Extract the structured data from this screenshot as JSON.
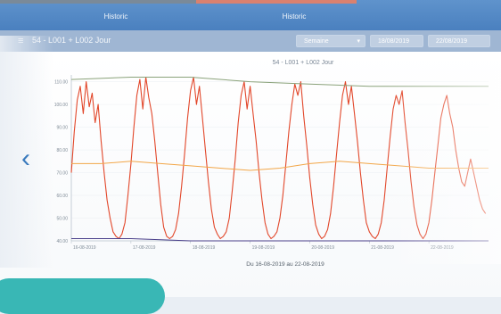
{
  "tabs": [
    {
      "label": "Historic"
    },
    {
      "label": "Historic"
    }
  ],
  "toolbar": {
    "menu_icon": "hamburger-icon",
    "title": "54 - L001 + L002 Jour",
    "period_select": "Semaine",
    "date_from": "18/08/2019",
    "date_to": "22/08/2019"
  },
  "chart_data": {
    "type": "line",
    "title": "54 - L001 + L002 Jour",
    "xlabel": "Du 16-08-2019 au 22-08-2019",
    "ylabel": "",
    "y_ticks": [
      "110.00",
      "100.00",
      "90.00",
      "80.00",
      "70.00",
      "60.00",
      "50.00",
      "40.00"
    ],
    "x_ticks": [
      "16-08-2019",
      "17-08-2019",
      "18-08-2019",
      "19-08-2019",
      "20-08-2019",
      "21-08-2019",
      "22-08-2019"
    ],
    "ylim": [
      40,
      113
    ],
    "xlim": [
      0,
      7
    ],
    "series": [
      {
        "color": "#e2472a",
        "x": [
          0,
          0.05,
          0.1,
          0.15,
          0.2,
          0.25,
          0.3,
          0.35,
          0.4,
          0.45,
          0.5,
          0.55,
          0.6,
          0.65,
          0.7,
          0.75,
          0.8,
          0.85,
          0.9,
          0.95,
          1,
          1.05,
          1.1,
          1.15,
          1.2,
          1.25,
          1.3,
          1.35,
          1.4,
          1.45,
          1.5,
          1.55,
          1.6,
          1.65,
          1.7,
          1.75,
          1.8,
          1.85,
          1.9,
          1.95,
          2,
          2.05,
          2.1,
          2.15,
          2.2,
          2.25,
          2.3,
          2.35,
          2.4,
          2.45,
          2.5,
          2.55,
          2.6,
          2.65,
          2.7,
          2.75,
          2.8,
          2.85,
          2.9,
          2.95,
          3,
          3.05,
          3.1,
          3.15,
          3.2,
          3.25,
          3.3,
          3.35,
          3.4,
          3.45,
          3.5,
          3.55,
          3.6,
          3.65,
          3.7,
          3.75,
          3.8,
          3.85,
          3.9,
          3.95,
          4,
          4.05,
          4.1,
          4.15,
          4.2,
          4.25,
          4.3,
          4.35,
          4.4,
          4.45,
          4.5,
          4.55,
          4.6,
          4.65,
          4.7,
          4.75,
          4.8,
          4.85,
          4.9,
          4.95,
          5,
          5.05,
          5.1,
          5.15,
          5.2,
          5.25,
          5.3,
          5.35,
          5.4,
          5.45,
          5.5,
          5.55,
          5.6,
          5.65,
          5.7,
          5.75,
          5.8,
          5.85,
          5.9,
          5.95,
          6,
          6.05,
          6.1,
          6.15,
          6.2,
          6.25,
          6.3,
          6.35,
          6.4,
          6.45,
          6.5,
          6.55,
          6.6,
          6.65,
          6.7,
          6.75,
          6.8,
          6.85,
          6.9,
          6.95
        ],
        "y": [
          70,
          88,
          102,
          108,
          96,
          110,
          99,
          105,
          92,
          100,
          84,
          70,
          58,
          50,
          44,
          42,
          41,
          43,
          48,
          60,
          74,
          90,
          104,
          111,
          98,
          112,
          103,
          96,
          84,
          70,
          56,
          46,
          42,
          41,
          42,
          45,
          52,
          64,
          78,
          94,
          106,
          112,
          100,
          108,
          94,
          80,
          66,
          54,
          46,
          43,
          41,
          42,
          44,
          50,
          62,
          76,
          92,
          104,
          110,
          98,
          108,
          96,
          84,
          70,
          58,
          48,
          43,
          41,
          42,
          44,
          50,
          60,
          74,
          88,
          100,
          109,
          104,
          110,
          95,
          82,
          68,
          56,
          47,
          43,
          41,
          42,
          45,
          52,
          64,
          78,
          92,
          104,
          110,
          100,
          108,
          96,
          84,
          70,
          58,
          48,
          44,
          42,
          41,
          43,
          48,
          58,
          72,
          86,
          98,
          104,
          100,
          106,
          92,
          80,
          66,
          55,
          47,
          43,
          41,
          43,
          48,
          58,
          70,
          82,
          94,
          100,
          104,
          96,
          90,
          80,
          72,
          66,
          64,
          70,
          76,
          70,
          64,
          58,
          54,
          52
        ]
      },
      {
        "color": "#f2a648",
        "x": [
          0,
          0.5,
          1,
          1.5,
          2,
          2.5,
          3,
          3.5,
          4,
          4.5,
          5,
          5.5,
          6,
          6.5,
          7
        ],
        "y": [
          74,
          74,
          75,
          74,
          73,
          72,
          71,
          72,
          74,
          75,
          74,
          73,
          72,
          72,
          72
        ]
      },
      {
        "color": "#8aa27a",
        "x": [
          0,
          1,
          2,
          3,
          4,
          5,
          6,
          7
        ],
        "y": [
          111,
          112,
          112,
          110,
          109,
          108,
          108,
          108
        ]
      },
      {
        "color": "#4a3f8a",
        "x": [
          0,
          1,
          2,
          3,
          4,
          5,
          6,
          7
        ],
        "y": [
          41,
          41,
          40,
          40,
          40,
          40,
          40,
          40
        ]
      }
    ]
  }
}
